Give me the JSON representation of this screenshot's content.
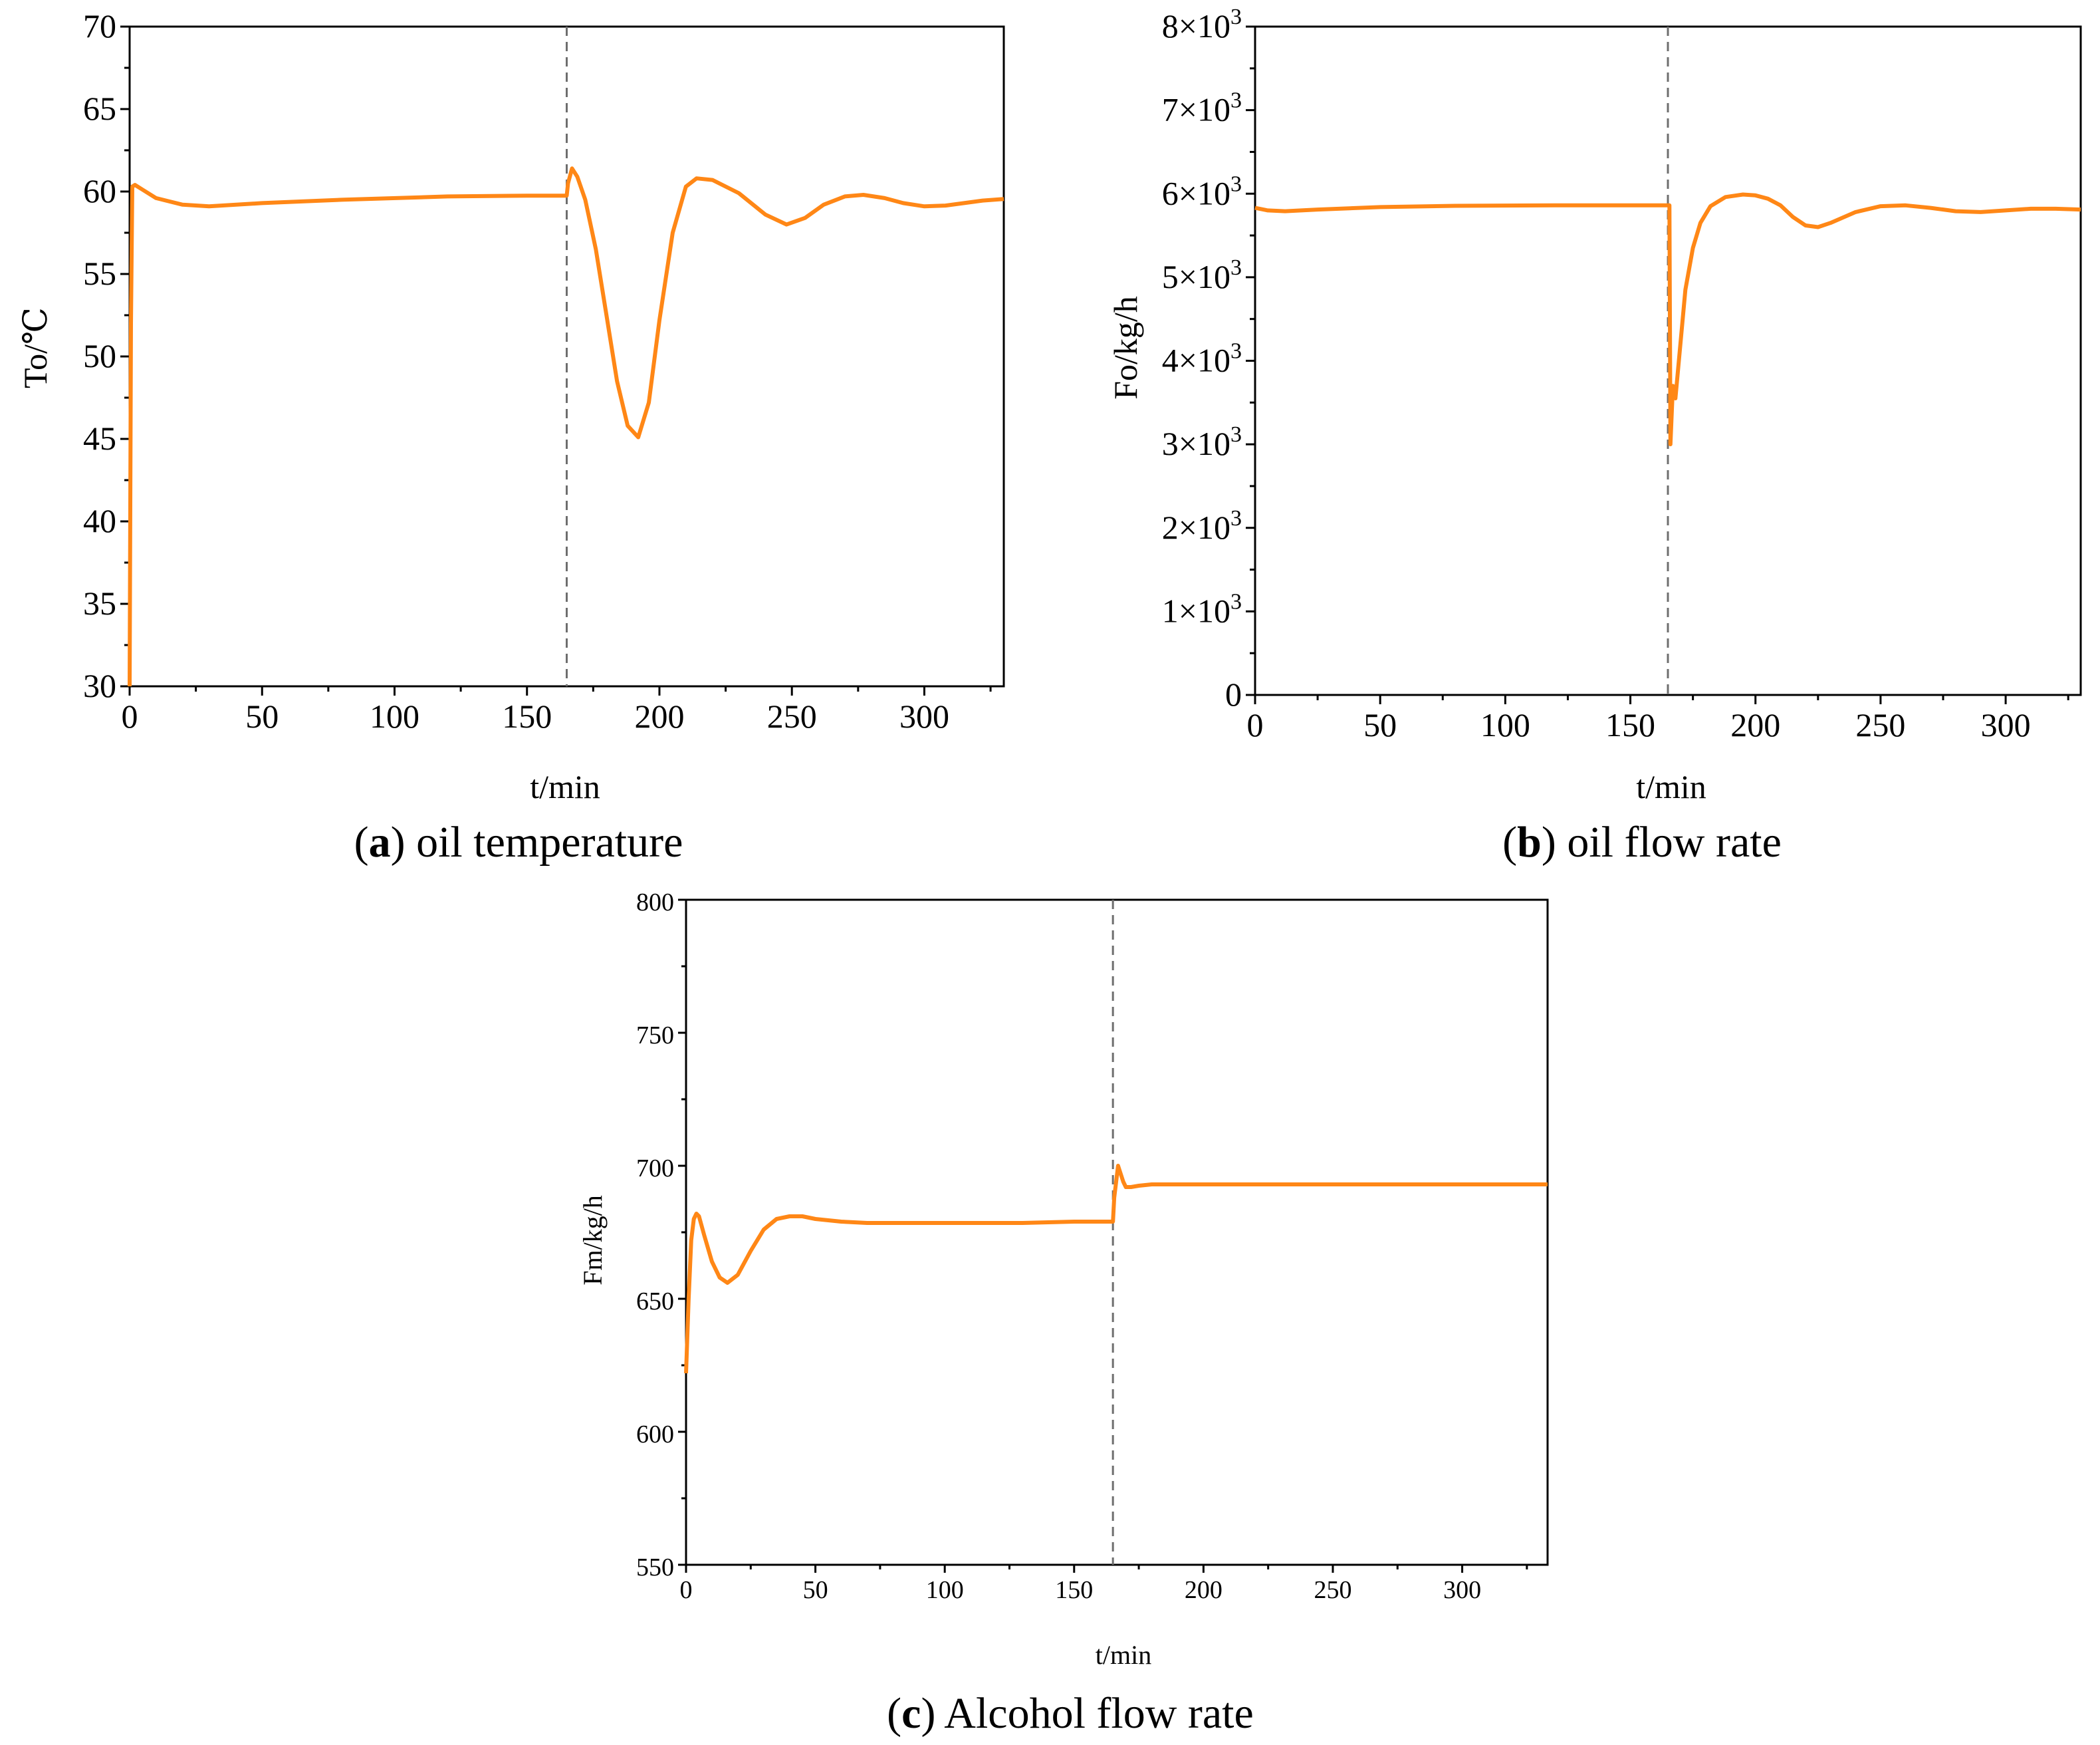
{
  "colors": {
    "series": "#ff8716",
    "event_line": "#6e6e6e",
    "axis": "#000000"
  },
  "chart_data": [
    {
      "id": "a",
      "type": "line",
      "caption": {
        "letter": "a",
        "text": "oil temperature"
      },
      "xlabel": "t/min",
      "ylabel": "To/℃",
      "xlim": [
        0,
        330
      ],
      "ylim": [
        30,
        70
      ],
      "xticks": [
        0,
        50,
        100,
        150,
        200,
        250,
        300
      ],
      "yticks": [
        30,
        35,
        40,
        45,
        50,
        55,
        60,
        65,
        70
      ],
      "ytick_labels": [
        "30",
        "35",
        "40",
        "45",
        "50",
        "55",
        "60",
        "65",
        "70"
      ],
      "event_x": 165,
      "series": [
        {
          "name": "To",
          "x": [
            0,
            0.5,
            1,
            2,
            3,
            5,
            10,
            20,
            30,
            50,
            80,
            120,
            150,
            165,
            165.5,
            167,
            169,
            172,
            176,
            180,
            184,
            188,
            192,
            196,
            200,
            205,
            210,
            214,
            220,
            230,
            240,
            248,
            255,
            262,
            270,
            277,
            285,
            292,
            300,
            308,
            315,
            322,
            330
          ],
          "y": [
            30,
            52,
            60.3,
            60.4,
            60.3,
            60.1,
            59.6,
            59.2,
            59.1,
            59.3,
            59.5,
            59.7,
            59.75,
            59.75,
            60.5,
            61.4,
            60.9,
            59.5,
            56.5,
            52.5,
            48.5,
            45.8,
            45.1,
            47.2,
            52.2,
            57.5,
            60.3,
            60.8,
            60.7,
            59.9,
            58.6,
            58.0,
            58.4,
            59.2,
            59.7,
            59.8,
            59.6,
            59.3,
            59.1,
            59.15,
            59.3,
            59.45,
            59.55
          ]
        }
      ]
    },
    {
      "id": "b",
      "type": "line",
      "caption": {
        "letter": "b",
        "text": "oil flow rate"
      },
      "xlabel": "t/min",
      "ylabel": "Fo/kg/h",
      "xlim": [
        0,
        330
      ],
      "ylim": [
        0,
        8000
      ],
      "xticks": [
        0,
        50,
        100,
        150,
        200,
        250,
        300
      ],
      "yticks": [
        0,
        1000,
        2000,
        3000,
        4000,
        5000,
        6000,
        7000,
        8000
      ],
      "ytick_labels": [
        {
          "base": "0",
          "exp": ""
        },
        {
          "base": "1×10",
          "exp": "3"
        },
        {
          "base": "2×10",
          "exp": "3"
        },
        {
          "base": "3×10",
          "exp": "3"
        },
        {
          "base": "4×10",
          "exp": "3"
        },
        {
          "base": "5×10",
          "exp": "3"
        },
        {
          "base": "6×10",
          "exp": "3"
        },
        {
          "base": "7×10",
          "exp": "3"
        },
        {
          "base": "8×10",
          "exp": "3"
        }
      ],
      "event_x": 165,
      "series": [
        {
          "name": "Fo",
          "x": [
            0,
            5,
            12,
            25,
            50,
            80,
            120,
            150,
            165,
            165.6,
            166,
            167,
            168,
            170,
            172,
            175,
            178,
            182,
            188,
            195,
            200,
            205,
            210,
            215,
            220,
            225,
            230,
            240,
            250,
            260,
            270,
            280,
            290,
            300,
            310,
            320,
            330
          ],
          "y": [
            5830,
            5800,
            5790,
            5810,
            5840,
            5855,
            5860,
            5860,
            5860,
            5860,
            3000,
            3700,
            3550,
            4200,
            4850,
            5350,
            5650,
            5850,
            5960,
            5990,
            5980,
            5940,
            5860,
            5720,
            5620,
            5600,
            5650,
            5780,
            5850,
            5860,
            5830,
            5790,
            5780,
            5800,
            5820,
            5820,
            5810
          ]
        }
      ]
    },
    {
      "id": "c",
      "type": "line",
      "caption": {
        "letter": "c",
        "text": "Alcohol flow rate"
      },
      "xlabel": "t/min",
      "ylabel": "Fm/kg/h",
      "xlim": [
        0,
        333
      ],
      "ylim": [
        550,
        800
      ],
      "xticks": [
        0,
        50,
        100,
        150,
        200,
        250,
        300
      ],
      "yticks": [
        550,
        600,
        650,
        700,
        750,
        800
      ],
      "ytick_labels": [
        "550",
        "600",
        "650",
        "700",
        "750",
        "800"
      ],
      "event_x": 165,
      "series": [
        {
          "name": "Fm",
          "x": [
            0,
            1,
            2,
            3,
            4,
            5,
            7,
            10,
            13,
            16,
            20,
            25,
            30,
            35,
            40,
            45,
            50,
            60,
            70,
            90,
            110,
            130,
            150,
            165,
            165.5,
            167,
            168,
            169,
            170,
            172,
            175,
            180,
            190,
            200,
            230,
            260,
            300,
            333
          ],
          "y": [
            622,
            650,
            672,
            680,
            682,
            681,
            674,
            664,
            658,
            656,
            659,
            668,
            676,
            680,
            681,
            681,
            680,
            679,
            678.5,
            678.5,
            678.5,
            678.5,
            679,
            679,
            688,
            700,
            697,
            694,
            692,
            692,
            692.5,
            693,
            693,
            693,
            693,
            693,
            693,
            693
          ]
        }
      ]
    }
  ]
}
